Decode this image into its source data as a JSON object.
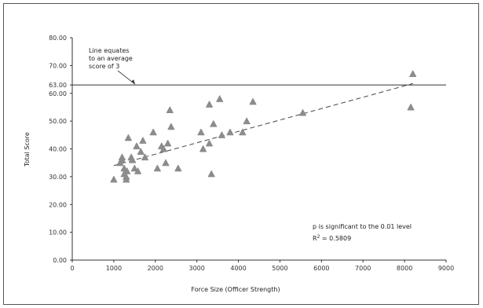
{
  "chart_data": {
    "type": "scatter",
    "xlabel": "Force Size (Officer Strength)",
    "ylabel": "Total Score",
    "xlim": [
      0,
      9000
    ],
    "ylim": [
      0,
      80
    ],
    "x_ticks": [
      "0",
      "1000",
      "2000",
      "3000",
      "4000",
      "5000",
      "6000",
      "7000",
      "8000",
      "9000"
    ],
    "y_ticks": [
      "0.00",
      "10.00",
      "20.00",
      "30.00",
      "40.00",
      "50.00",
      "60.00",
      "63.00",
      "70.00",
      "80.00"
    ],
    "y_tick_values": [
      0,
      10,
      20,
      30,
      40,
      50,
      60,
      63,
      70,
      80
    ],
    "x_tick_values": [
      0,
      1000,
      2000,
      3000,
      4000,
      5000,
      6000,
      7000,
      8000,
      9000
    ],
    "grid": false,
    "reference_line": {
      "y": 63,
      "annotation": [
        "Line equates",
        "to an average",
        "score of 3"
      ]
    },
    "trendline": {
      "style": "dashed",
      "x": [
        1000,
        8200
      ],
      "y": [
        34,
        63.5
      ]
    },
    "stats_text": {
      "line1": "p is significant to the 0.01 level",
      "r2_prefix": "R",
      "r2_sup": "2",
      "r2_suffix": " = 0.5809"
    },
    "series": [
      {
        "marker_color": "#8c8c8c",
        "points": [
          [
            1000,
            29
          ],
          [
            1150,
            35
          ],
          [
            1200,
            36
          ],
          [
            1200,
            37
          ],
          [
            1250,
            33
          ],
          [
            1250,
            31
          ],
          [
            1300,
            30
          ],
          [
            1300,
            29
          ],
          [
            1320,
            32
          ],
          [
            1350,
            44
          ],
          [
            1420,
            37
          ],
          [
            1450,
            36
          ],
          [
            1500,
            33
          ],
          [
            1550,
            41
          ],
          [
            1580,
            32
          ],
          [
            1650,
            39
          ],
          [
            1700,
            43
          ],
          [
            1750,
            37
          ],
          [
            1950,
            46
          ],
          [
            2050,
            33
          ],
          [
            2150,
            41
          ],
          [
            2200,
            40
          ],
          [
            2250,
            35
          ],
          [
            2300,
            42
          ],
          [
            2350,
            54
          ],
          [
            2380,
            48
          ],
          [
            2550,
            33
          ],
          [
            3100,
            46
          ],
          [
            3150,
            40
          ],
          [
            3300,
            42
          ],
          [
            3300,
            56
          ],
          [
            3350,
            31
          ],
          [
            3400,
            49
          ],
          [
            3550,
            58
          ],
          [
            3600,
            45
          ],
          [
            3800,
            46
          ],
          [
            4100,
            46
          ],
          [
            4200,
            50
          ],
          [
            4350,
            57
          ],
          [
            5550,
            53
          ],
          [
            8150,
            55
          ],
          [
            8200,
            67
          ]
        ]
      }
    ]
  }
}
